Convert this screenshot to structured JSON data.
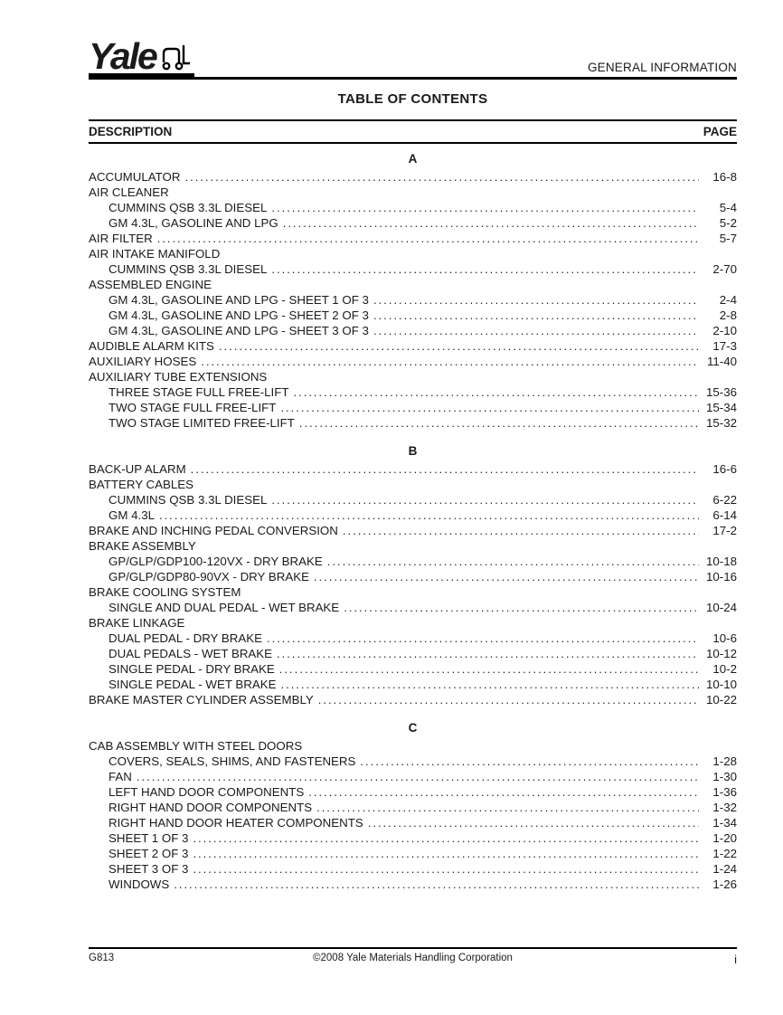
{
  "colors": {
    "background": "#ffffff",
    "text": "#1a1a1a",
    "rule": "#000000"
  },
  "header": {
    "brand": "Yale",
    "brand_icon": "forklift-icon",
    "section_label": "GENERAL INFORMATION",
    "page_title": "TABLE OF CONTENTS"
  },
  "toc": {
    "description_header": "DESCRIPTION",
    "page_header": "PAGE",
    "sections": [
      {
        "letter": "A",
        "entries": [
          {
            "label": "ACCUMULATOR",
            "page": "16-8",
            "indent": 0
          },
          {
            "label": "AIR CLEANER",
            "page": null,
            "indent": 0
          },
          {
            "label": "CUMMINS QSB 3.3L DIESEL",
            "page": "5-4",
            "indent": 1
          },
          {
            "label": "GM 4.3L, GASOLINE AND LPG",
            "page": "5-2",
            "indent": 1
          },
          {
            "label": "AIR FILTER",
            "page": "5-7",
            "indent": 0
          },
          {
            "label": "AIR INTAKE MANIFOLD",
            "page": null,
            "indent": 0
          },
          {
            "label": "CUMMINS QSB 3.3L DIESEL",
            "page": "2-70",
            "indent": 1
          },
          {
            "label": "ASSEMBLED ENGINE",
            "page": null,
            "indent": 0
          },
          {
            "label": "GM 4.3L, GASOLINE AND LPG - SHEET 1 OF 3",
            "page": "2-4",
            "indent": 1
          },
          {
            "label": "GM 4.3L, GASOLINE AND LPG - SHEET 2 OF 3",
            "page": "2-8",
            "indent": 1
          },
          {
            "label": "GM 4.3L, GASOLINE AND LPG - SHEET 3 OF 3",
            "page": "2-10",
            "indent": 1
          },
          {
            "label": "AUDIBLE ALARM KITS",
            "page": "17-3",
            "indent": 0
          },
          {
            "label": "AUXILIARY HOSES",
            "page": "11-40",
            "indent": 0
          },
          {
            "label": "AUXILIARY TUBE EXTENSIONS",
            "page": null,
            "indent": 0
          },
          {
            "label": "THREE STAGE FULL FREE-LIFT",
            "page": "15-36",
            "indent": 1
          },
          {
            "label": "TWO STAGE FULL FREE-LIFT",
            "page": "15-34",
            "indent": 1
          },
          {
            "label": "TWO STAGE LIMITED FREE-LIFT",
            "page": "15-32",
            "indent": 1
          }
        ]
      },
      {
        "letter": "B",
        "entries": [
          {
            "label": "BACK-UP ALARM",
            "page": "16-6",
            "indent": 0
          },
          {
            "label": "BATTERY CABLES",
            "page": null,
            "indent": 0
          },
          {
            "label": "CUMMINS QSB 3.3L DIESEL",
            "page": "6-22",
            "indent": 1
          },
          {
            "label": "GM 4.3L",
            "page": "6-14",
            "indent": 1
          },
          {
            "label": "BRAKE AND INCHING PEDAL CONVERSION",
            "page": "17-2",
            "indent": 0
          },
          {
            "label": "BRAKE ASSEMBLY",
            "page": null,
            "indent": 0
          },
          {
            "label": "GP/GLP/GDP100-120VX - DRY BRAKE",
            "page": "10-18",
            "indent": 1
          },
          {
            "label": "GP/GLP/GDP80-90VX - DRY BRAKE",
            "page": "10-16",
            "indent": 1
          },
          {
            "label": "BRAKE COOLING SYSTEM",
            "page": null,
            "indent": 0
          },
          {
            "label": "SINGLE AND DUAL PEDAL - WET BRAKE",
            "page": "10-24",
            "indent": 1
          },
          {
            "label": "BRAKE LINKAGE",
            "page": null,
            "indent": 0
          },
          {
            "label": "DUAL PEDAL - DRY BRAKE",
            "page": "10-6",
            "indent": 1
          },
          {
            "label": "DUAL PEDALS - WET BRAKE",
            "page": "10-12",
            "indent": 1
          },
          {
            "label": "SINGLE PEDAL - DRY BRAKE",
            "page": "10-2",
            "indent": 1
          },
          {
            "label": "SINGLE PEDAL - WET BRAKE",
            "page": "10-10",
            "indent": 1
          },
          {
            "label": "BRAKE MASTER CYLINDER ASSEMBLY",
            "page": "10-22",
            "indent": 0
          }
        ]
      },
      {
        "letter": "C",
        "entries": [
          {
            "label": "CAB ASSEMBLY WITH STEEL DOORS",
            "page": null,
            "indent": 0
          },
          {
            "label": "COVERS, SEALS, SHIMS, AND FASTENERS",
            "page": "1-28",
            "indent": 1
          },
          {
            "label": "FAN",
            "page": "1-30",
            "indent": 1
          },
          {
            "label": "LEFT HAND DOOR COMPONENTS",
            "page": "1-36",
            "indent": 1
          },
          {
            "label": "RIGHT HAND DOOR COMPONENTS",
            "page": "1-32",
            "indent": 1
          },
          {
            "label": "RIGHT HAND DOOR HEATER COMPONENTS",
            "page": "1-34",
            "indent": 1
          },
          {
            "label": "SHEET 1 OF 3",
            "page": "1-20",
            "indent": 1
          },
          {
            "label": "SHEET 2 OF 3",
            "page": "1-22",
            "indent": 1
          },
          {
            "label": "SHEET 3 OF 3",
            "page": "1-24",
            "indent": 1
          },
          {
            "label": "WINDOWS",
            "page": "1-26",
            "indent": 1
          }
        ]
      }
    ]
  },
  "footer": {
    "doc_code": "G813",
    "copyright": "©2008 Yale Materials Handling Corporation",
    "page_number": "i"
  }
}
